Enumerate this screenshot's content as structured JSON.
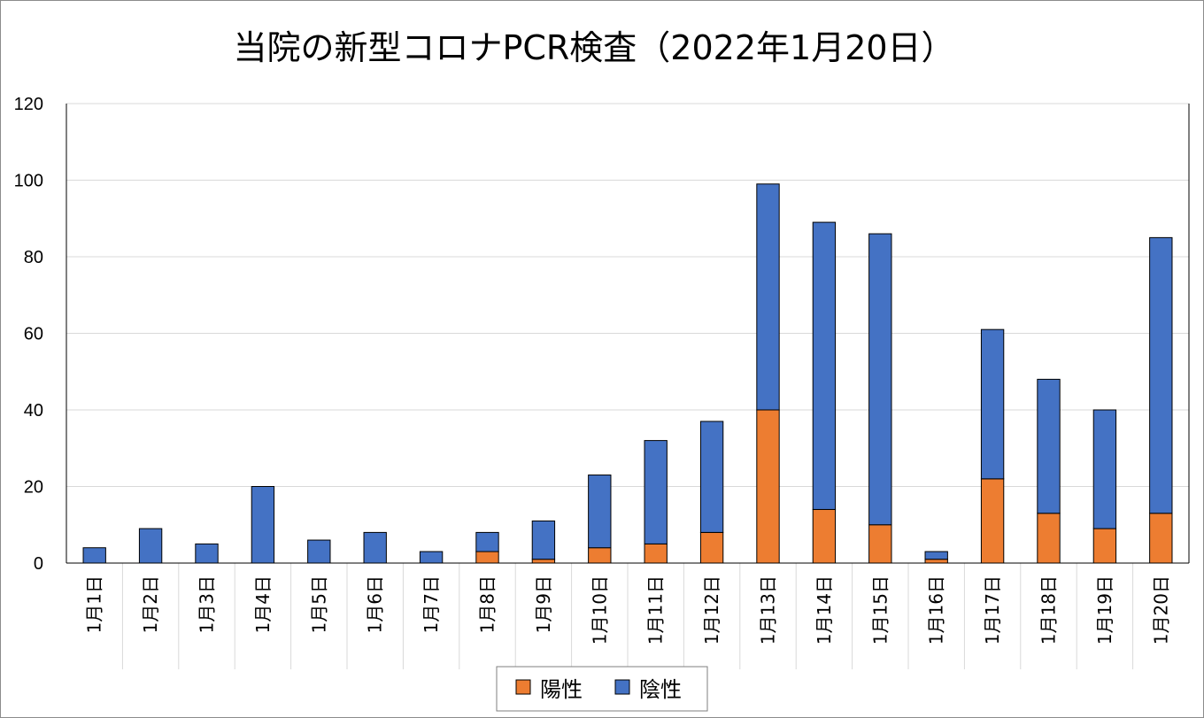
{
  "chart_data": {
    "type": "bar",
    "stacked": true,
    "title": "当院の新型コロナPCR検査（2022年1月20日）",
    "xlabel": "",
    "ylabel": "",
    "ylim": [
      0,
      120
    ],
    "yticks": [
      0,
      20,
      40,
      60,
      80,
      100,
      120
    ],
    "grid": true,
    "legend_position": "bottom",
    "categories": [
      "1月1日",
      "1月2日",
      "1月3日",
      "1月4日",
      "1月5日",
      "1月6日",
      "1月7日",
      "1月8日",
      "1月9日",
      "1月10日",
      "1月11日",
      "1月12日",
      "1月13日",
      "1月14日",
      "1月15日",
      "1月16日",
      "1月17日",
      "1月18日",
      "1月19日",
      "1月20日"
    ],
    "series": [
      {
        "name": "陽性",
        "color": "#ed7d31",
        "values": [
          0,
          0,
          0,
          0,
          0,
          0,
          0,
          3,
          1,
          4,
          5,
          8,
          40,
          14,
          10,
          1,
          22,
          13,
          9,
          13
        ]
      },
      {
        "name": "陰性",
        "color": "#4472c4",
        "values": [
          4,
          9,
          5,
          20,
          6,
          8,
          3,
          5,
          10,
          19,
          27,
          29,
          59,
          75,
          76,
          2,
          39,
          35,
          31,
          72
        ]
      }
    ]
  }
}
